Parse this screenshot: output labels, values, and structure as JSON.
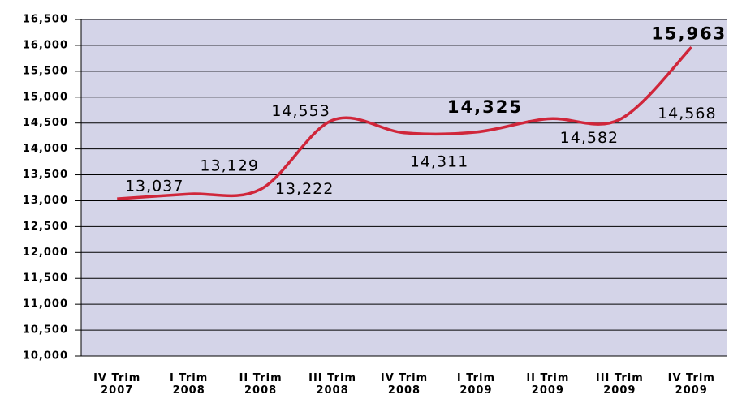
{
  "chart_data": {
    "type": "line",
    "categories": [
      "IV Trim 2007",
      "I Trim 2008",
      "II Trim 2008",
      "III Trim 2008",
      "IV Trim 2008",
      "I Trim 2009",
      "II Trim 2009",
      "III Trim 2009",
      "IV Trim 2009"
    ],
    "values": [
      13037,
      13129,
      13222,
      14553,
      14311,
      14325,
      14582,
      14568,
      15963
    ],
    "value_labels": [
      "13,037",
      "13,129",
      "13,222",
      "14,553",
      "14,311",
      "14,325",
      "14,582",
      "14,568",
      "15,963"
    ],
    "color": "#d0263a",
    "ylim": [
      10000,
      16500
    ],
    "yticks": [
      {
        "value": 10000,
        "label": "10,000"
      },
      {
        "value": 10500,
        "label": "10,500"
      },
      {
        "value": 11000,
        "label": "11,000"
      },
      {
        "value": 11500,
        "label": "11,500"
      },
      {
        "value": 12000,
        "label": "12,000"
      },
      {
        "value": 12500,
        "label": "12,500"
      },
      {
        "value": 13000,
        "label": "13,000"
      },
      {
        "value": 13500,
        "label": "13,500"
      },
      {
        "value": 14000,
        "label": "14,000"
      },
      {
        "value": 14500,
        "label": "14,500"
      },
      {
        "value": 15000,
        "label": "15,000"
      },
      {
        "value": 15500,
        "label": "15,500"
      },
      {
        "value": 16000,
        "label": "16,000"
      },
      {
        "value": 16500,
        "label": "16,500"
      }
    ],
    "grid": true
  }
}
